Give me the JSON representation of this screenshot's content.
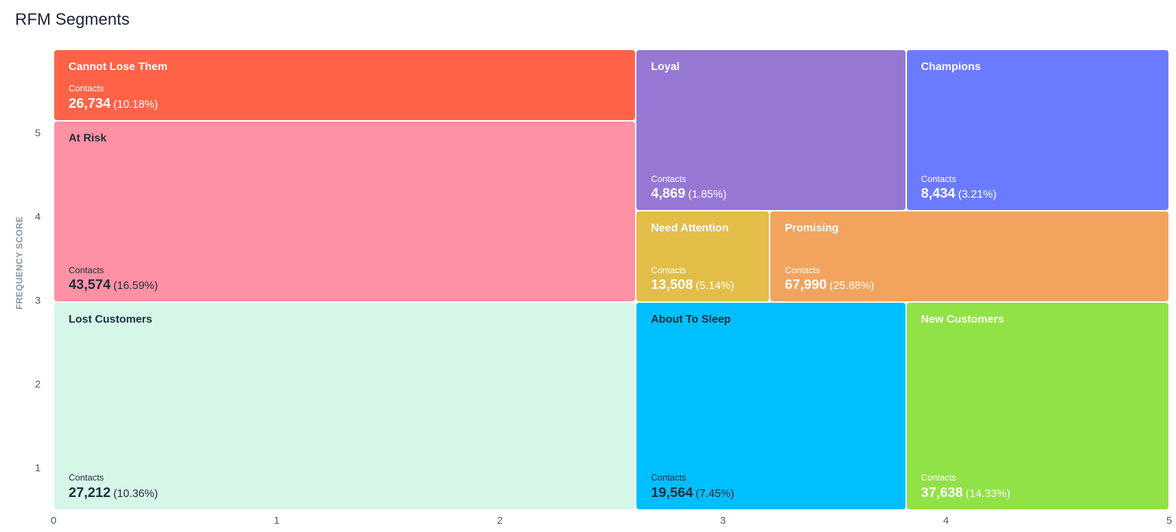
{
  "title": "RFM Segments",
  "chart_data": {
    "type": "treemap",
    "title": "RFM Segments",
    "xlabel": "",
    "ylabel": "FREQUENCY SCORE",
    "xlim": [
      0,
      5
    ],
    "ylim": [
      0,
      5.5
    ],
    "x_ticks": [
      "0",
      "1",
      "2",
      "3",
      "4",
      "5"
    ],
    "y_ticks": [
      "1",
      "2",
      "3",
      "4",
      "5"
    ],
    "contacts_label": "Contacts",
    "segments": [
      {
        "name": "Cannot Lose Them",
        "count": "26,734",
        "pct": "(10.18%)",
        "value": 26734,
        "percent": 10.18,
        "x": [
          0,
          2.61
        ],
        "y": [
          4.65,
          5.5
        ],
        "color": "#ff6347",
        "text": "light"
      },
      {
        "name": "At Risk",
        "count": "43,574",
        "pct": "(16.59%)",
        "value": 43574,
        "percent": 16.59,
        "x": [
          0,
          2.61
        ],
        "y": [
          2.48,
          4.65
        ],
        "color": "#ff91a4",
        "text": "dark"
      },
      {
        "name": "Lost Customers",
        "count": "27,212",
        "pct": "(10.36%)",
        "value": 27212,
        "percent": 10.36,
        "x": [
          0,
          2.61
        ],
        "y": [
          0,
          2.48
        ],
        "color": "#d6f6e8",
        "text": "dark"
      },
      {
        "name": "Loyal",
        "count": "4,869",
        "pct": "(1.85%)",
        "value": 4869,
        "percent": 1.85,
        "x": [
          2.61,
          3.82
        ],
        "y": [
          3.57,
          5.5
        ],
        "color": "#9677d4",
        "text": "light"
      },
      {
        "name": "Champions",
        "count": "8,434",
        "pct": "(3.21%)",
        "value": 8434,
        "percent": 3.21,
        "x": [
          3.82,
          5
        ],
        "y": [
          3.57,
          5.5
        ],
        "color": "#6a7bff",
        "text": "light"
      },
      {
        "name": "Need Attention",
        "count": "13,508",
        "pct": "(5.14%)",
        "value": 13508,
        "percent": 5.14,
        "x": [
          2.61,
          3.21
        ],
        "y": [
          2.48,
          3.57
        ],
        "color": "#e2bd47",
        "text": "light"
      },
      {
        "name": "Promising",
        "count": "67,990",
        "pct": "(25.88%)",
        "value": 67990,
        "percent": 25.88,
        "x": [
          3.21,
          5
        ],
        "y": [
          2.48,
          3.57
        ],
        "color": "#f2a45e",
        "text": "light"
      },
      {
        "name": "About To Sleep",
        "count": "19,564",
        "pct": "(7.45%)",
        "value": 19564,
        "percent": 7.45,
        "x": [
          2.61,
          3.82
        ],
        "y": [
          0,
          2.48
        ],
        "color": "#00bfff",
        "text": "dark"
      },
      {
        "name": "New Customers",
        "count": "37,638",
        "pct": "(14.33%)",
        "value": 37638,
        "percent": 14.33,
        "x": [
          3.82,
          5
        ],
        "y": [
          0,
          2.48
        ],
        "color": "#91e246",
        "text": "light"
      }
    ]
  }
}
